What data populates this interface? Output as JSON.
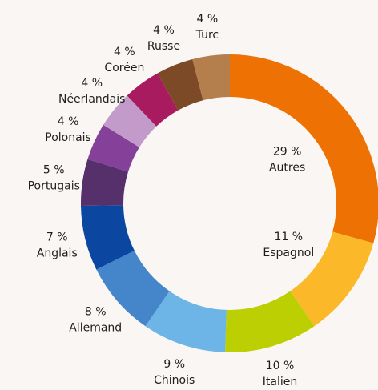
{
  "chart_data": {
    "type": "donut",
    "categories": [
      "Autres",
      "Espagnol",
      "Italien",
      "Chinois",
      "Allemand",
      "Anglais",
      "Portugais",
      "Polonais",
      "Néerlandais",
      "Coréen",
      "Russe",
      "Turc"
    ],
    "values": [
      29,
      11,
      10,
      9,
      8,
      7,
      5,
      4,
      4,
      4,
      4,
      4
    ],
    "value_labels": [
      "29 %",
      "11 %",
      "10 %",
      "9 %",
      "8 %",
      "7 %",
      "5 %",
      "4 %",
      "4 %",
      "4 %",
      "4 %",
      "4 %"
    ],
    "colors": [
      "#ee7203",
      "#fbb829",
      "#bccf02",
      "#6cb5e6",
      "#4585c9",
      "#0b46a0",
      "#55306b",
      "#85409a",
      "#c39bcb",
      "#a81b5e",
      "#7c4a26",
      "#b57f4d"
    ]
  }
}
